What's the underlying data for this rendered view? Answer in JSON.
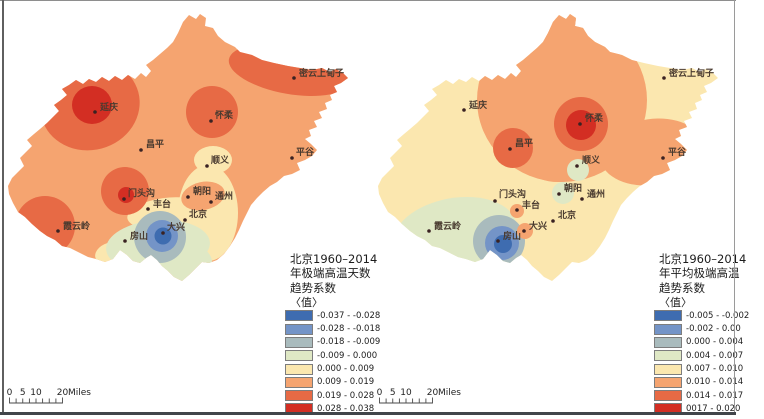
{
  "figure": {
    "description_left": "Beijing 1960-2014 annual extreme high temperature days trend coefficient map",
    "description_right": "Beijing 1960-2014 annual mean extreme high temperature trend coefficient map"
  },
  "palette": {
    "classes": [
      "#3E6CB0",
      "#7494C7",
      "#A9BBBD",
      "#DFE8C5",
      "#FBE7AF",
      "#F5A470",
      "#E76A45",
      "#D32E23"
    ],
    "swatch_border": "#7d7d7d",
    "dot_color": "#3a2222",
    "label_color": "#493a2f"
  },
  "maps": [
    {
      "side": "left",
      "title_lines": [
        "北京1960–2014",
        "年极端高温天数",
        "趋势系数"
      ],
      "value_header": "〈值〉",
      "legend": [
        {
          "range": "-0.037 - -0.028"
        },
        {
          "range": "-0.028 - -0.018"
        },
        {
          "range": "-0.018 - -0.009"
        },
        {
          "range": "-0.009 - 0.000"
        },
        {
          "range": "0.000 - 0.009"
        },
        {
          "range": "0.009 - 0.019"
        },
        {
          "range": "0.019 - 0.028"
        },
        {
          "range": "0.028 - 0.038"
        }
      ],
      "scale_bar": {
        "ticks": [
          "0",
          "5",
          "10",
          "20"
        ],
        "unit": "Miles"
      },
      "cities": [
        {
          "name": "延庆",
          "dot": [
            95,
            112
          ],
          "label": [
            100,
            110
          ]
        },
        {
          "name": "密云上甸子",
          "dot": [
            294,
            78
          ],
          "label": [
            299,
            76
          ]
        },
        {
          "name": "怀柔",
          "dot": [
            211,
            121
          ],
          "label": [
            215,
            118
          ]
        },
        {
          "name": "昌平",
          "dot": [
            141,
            150
          ],
          "label": [
            146,
            147
          ]
        },
        {
          "name": "顺义",
          "dot": [
            207,
            166
          ],
          "label": [
            211,
            163
          ]
        },
        {
          "name": "平谷",
          "dot": [
            292,
            158
          ],
          "label": [
            296,
            155
          ]
        },
        {
          "name": "门头沟",
          "dot": [
            124,
            199
          ],
          "label": [
            128,
            196
          ]
        },
        {
          "name": "丰台",
          "dot": [
            148,
            209
          ],
          "label": [
            153,
            207
          ]
        },
        {
          "name": "朝阳",
          "dot": [
            188,
            197
          ],
          "label": [
            193,
            194
          ]
        },
        {
          "name": "通州",
          "dot": [
            211,
            202
          ],
          "label": [
            215,
            199
          ]
        },
        {
          "name": "北京",
          "dot": [
            185,
            220
          ],
          "label": [
            189,
            217
          ]
        },
        {
          "name": "大兴",
          "dot": [
            163,
            233
          ],
          "label": [
            167,
            230
          ]
        },
        {
          "name": "房山",
          "dot": [
            125,
            241
          ],
          "label": [
            130,
            239
          ]
        },
        {
          "name": "霞云岭",
          "dot": [
            58,
            231
          ],
          "label": [
            63,
            229
          ]
        }
      ]
    },
    {
      "side": "right",
      "title_lines": [
        "北京1960–2014",
        "年平均极端高温",
        "趋势系数"
      ],
      "value_header": "〈值〉",
      "legend": [
        {
          "range": "-0.005 - -0.002"
        },
        {
          "range": "-0.002 - 0.00"
        },
        {
          "range": "0.000 - 0.004"
        },
        {
          "range": "0.004 - 0.007"
        },
        {
          "range": "0.007 - 0.010"
        },
        {
          "range": "0.010 - 0.014"
        },
        {
          "range": "0.014 - 0.017"
        },
        {
          "range": "0017 - 0.020"
        }
      ],
      "scale_bar": {
        "ticks": [
          "0",
          "5",
          "10",
          "20"
        ],
        "unit": "Miles"
      },
      "cities": [
        {
          "name": "延庆",
          "dot": [
            464,
            110
          ],
          "label": [
            469,
            108
          ]
        },
        {
          "name": "密云上甸子",
          "dot": [
            664,
            78
          ],
          "label": [
            669,
            76
          ]
        },
        {
          "name": "怀柔",
          "dot": [
            580,
            124
          ],
          "label": [
            585,
            121
          ]
        },
        {
          "name": "昌平",
          "dot": [
            510,
            149
          ],
          "label": [
            515,
            146
          ]
        },
        {
          "name": "顺义",
          "dot": [
            577,
            166
          ],
          "label": [
            582,
            163
          ]
        },
        {
          "name": "平谷",
          "dot": [
            663,
            158
          ],
          "label": [
            668,
            155
          ]
        },
        {
          "name": "门头沟",
          "dot": [
            495,
            201
          ],
          "label": [
            499,
            197
          ]
        },
        {
          "name": "丰台",
          "dot": [
            517,
            210
          ],
          "label": [
            522,
            208
          ]
        },
        {
          "name": "朝阳",
          "dot": [
            559,
            194
          ],
          "label": [
            564,
            191
          ]
        },
        {
          "name": "通州",
          "dot": [
            582,
            199
          ],
          "label": [
            587,
            197
          ]
        },
        {
          "name": "北京",
          "dot": [
            553,
            221
          ],
          "label": [
            558,
            218
          ]
        },
        {
          "name": "大兴",
          "dot": [
            524,
            231
          ],
          "label": [
            529,
            229
          ]
        },
        {
          "name": "房山",
          "dot": [
            498,
            241
          ],
          "label": [
            503,
            239
          ]
        },
        {
          "name": "霞云岭",
          "dot": [
            429,
            231
          ],
          "label": [
            434,
            229
          ]
        }
      ]
    }
  ]
}
